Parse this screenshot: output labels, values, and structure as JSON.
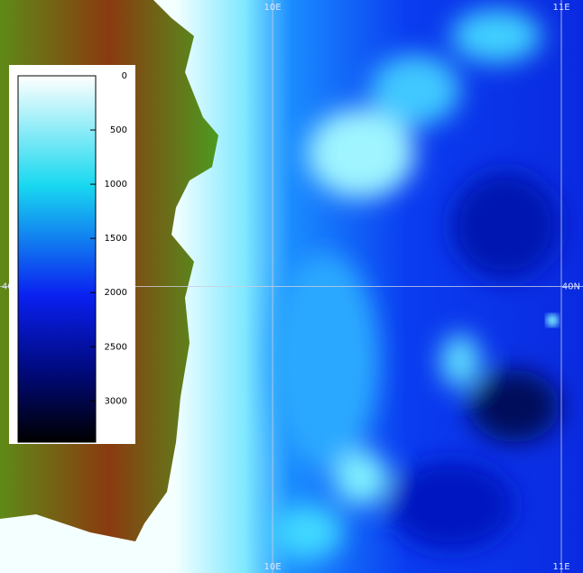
{
  "map": {
    "xlim": [
      9.056,
      11.075
    ],
    "ylim": [
      39.24,
      40.76
    ],
    "grid": {
      "longitudes": [
        {
          "value": 10,
          "label": "10E"
        },
        {
          "value": 11,
          "label": "11E"
        }
      ],
      "latitudes": [
        {
          "value": 40,
          "label": "40N"
        }
      ]
    },
    "colorbar": {
      "lim": [
        0,
        3380
      ],
      "ticks": [
        0,
        500,
        1000,
        1500,
        2000,
        2500,
        3000
      ]
    }
  }
}
